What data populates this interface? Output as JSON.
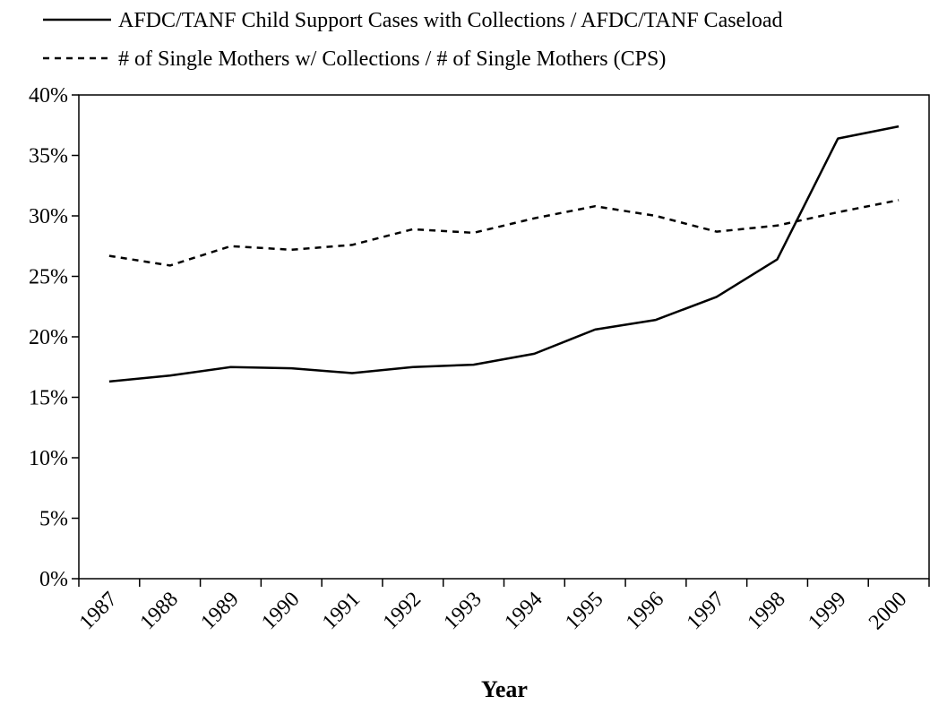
{
  "chart_data": {
    "type": "line",
    "title": "",
    "xlabel": "Year",
    "ylabel": "",
    "categories": [
      "1987",
      "1988",
      "1989",
      "1990",
      "1991",
      "1992",
      "1993",
      "1994",
      "1995",
      "1996",
      "1997",
      "1998",
      "1999",
      "2000"
    ],
    "ylim": [
      0,
      40
    ],
    "yticks": [
      "0%",
      "5%",
      "10%",
      "15%",
      "20%",
      "25%",
      "30%",
      "35%",
      "40%"
    ],
    "grid": false,
    "legend_position": "top",
    "series": [
      {
        "name": "AFDC/TANF Child Support Cases with Collections / AFDC/TANF Caseload",
        "line_style": "solid",
        "color": "#000000",
        "values": [
          16.3,
          16.8,
          17.5,
          17.4,
          17.0,
          17.5,
          17.7,
          18.6,
          20.6,
          21.4,
          23.3,
          26.4,
          36.4,
          37.4
        ]
      },
      {
        "name": "# of Single Mothers w/ Collections / # of Single Mothers (CPS)",
        "line_style": "dashed",
        "color": "#000000",
        "values": [
          26.7,
          25.9,
          27.5,
          27.2,
          27.6,
          28.9,
          28.6,
          29.8,
          30.8,
          30.0,
          28.7,
          29.2,
          30.3,
          31.3
        ]
      }
    ]
  }
}
